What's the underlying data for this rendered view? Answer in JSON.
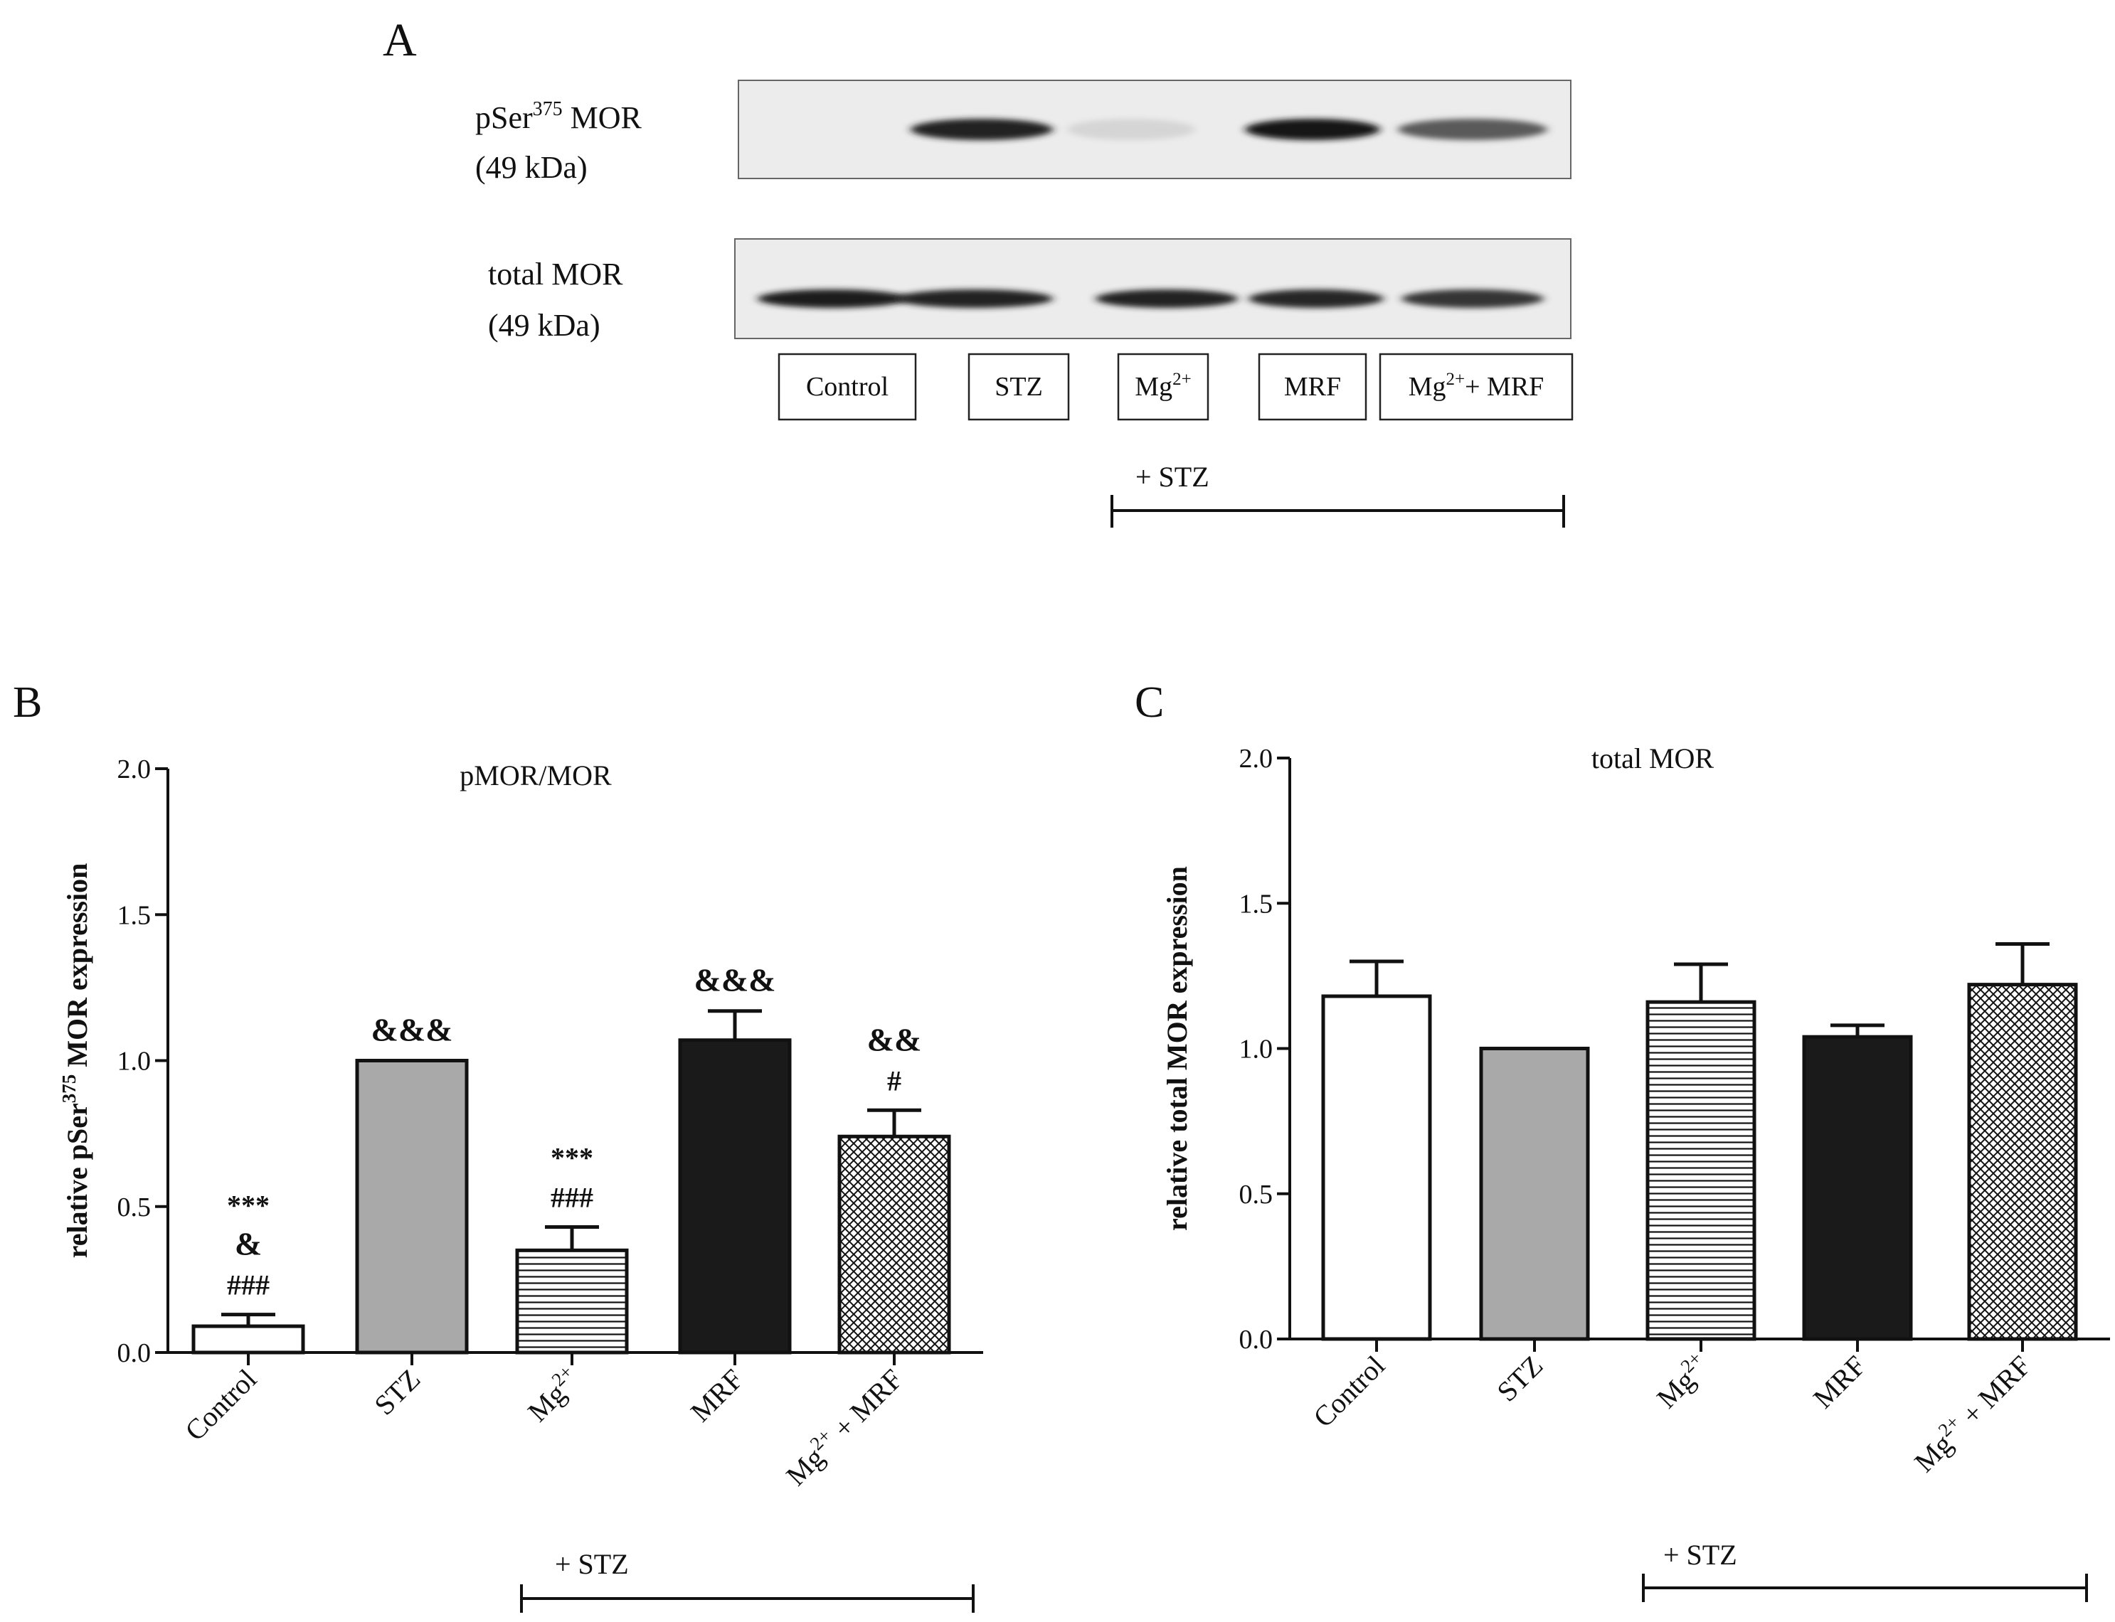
{
  "panel_a": {
    "letter": "A",
    "blots": [
      {
        "name_main": "pSer",
        "name_sup": "375",
        "name_after": " MOR",
        "mw": "(49 kDa)",
        "band_intensities": [
          0.0,
          0.92,
          0.08,
          0.97,
          0.65
        ]
      },
      {
        "name_main": "total MOR",
        "name_sup": "",
        "name_after": "",
        "mw": "(49 kDa)",
        "band_intensities": [
          0.95,
          0.92,
          0.92,
          0.9,
          0.82
        ]
      }
    ],
    "lanes": [
      {
        "main": "Control",
        "sup": "",
        "after": ""
      },
      {
        "main": "STZ",
        "sup": "",
        "after": ""
      },
      {
        "main": "Mg",
        "sup": "2+",
        "after": ""
      },
      {
        "main": "MRF",
        "sup": "",
        "after": ""
      },
      {
        "main": "Mg",
        "sup": "2+",
        "after": "+ MRF"
      }
    ],
    "stz_label": "+ STZ"
  },
  "chart_data": [
    {
      "panel": "B",
      "type": "bar",
      "title": "pMOR/MOR",
      "ylabel_main": "relative pSer",
      "ylabel_sup": "375",
      "ylabel_after": " MOR expression",
      "ylim": [
        0,
        2.0
      ],
      "yticks": [
        "0.0",
        "0.5",
        "1.0",
        "1.5",
        "2.0"
      ],
      "categories": [
        {
          "main": "Control",
          "sup": "",
          "after": ""
        },
        {
          "main": "STZ",
          "sup": "",
          "after": ""
        },
        {
          "main": "Mg",
          "sup": "2+",
          "after": ""
        },
        {
          "main": "MRF",
          "sup": "",
          "after": ""
        },
        {
          "main": "Mg",
          "sup": "2+",
          "after": " + MRF"
        }
      ],
      "values": [
        0.09,
        1.0,
        0.35,
        1.07,
        0.74
      ],
      "errors": [
        0.04,
        0.0,
        0.08,
        0.1,
        0.09
      ],
      "fills": [
        "white",
        "gray",
        "hlines",
        "black",
        "crosshatch"
      ],
      "annotations": [
        [
          "***",
          "&",
          "###"
        ],
        [
          "&&&"
        ],
        [
          "***",
          "###"
        ],
        [
          "&&&"
        ],
        [
          "&&",
          "#"
        ]
      ],
      "stz_label": "+ STZ"
    },
    {
      "panel": "C",
      "type": "bar",
      "title": "total MOR",
      "ylabel_main": "relative total MOR expression",
      "ylabel_sup": "",
      "ylabel_after": "",
      "ylim": [
        0,
        2.0
      ],
      "yticks": [
        "0.0",
        "0.5",
        "1.0",
        "1.5",
        "2.0"
      ],
      "categories": [
        {
          "main": "Control",
          "sup": "",
          "after": ""
        },
        {
          "main": "STZ",
          "sup": "",
          "after": ""
        },
        {
          "main": "Mg",
          "sup": "2+",
          "after": ""
        },
        {
          "main": "MRF",
          "sup": "",
          "after": ""
        },
        {
          "main": "Mg",
          "sup": "2+",
          "after": " + MRF"
        }
      ],
      "values": [
        1.18,
        1.0,
        1.16,
        1.04,
        1.22
      ],
      "errors": [
        0.12,
        0.0,
        0.13,
        0.04,
        0.14
      ],
      "fills": [
        "white",
        "gray",
        "hlines",
        "black",
        "crosshatch"
      ],
      "annotations": [
        [],
        [],
        [],
        [],
        []
      ],
      "stz_label": "+ STZ"
    }
  ],
  "colors": {
    "ink": "#111111",
    "stz_gray": "#a9a9a9",
    "mrf_black": "#1a1a1a",
    "blot_bg": "#ececec"
  }
}
